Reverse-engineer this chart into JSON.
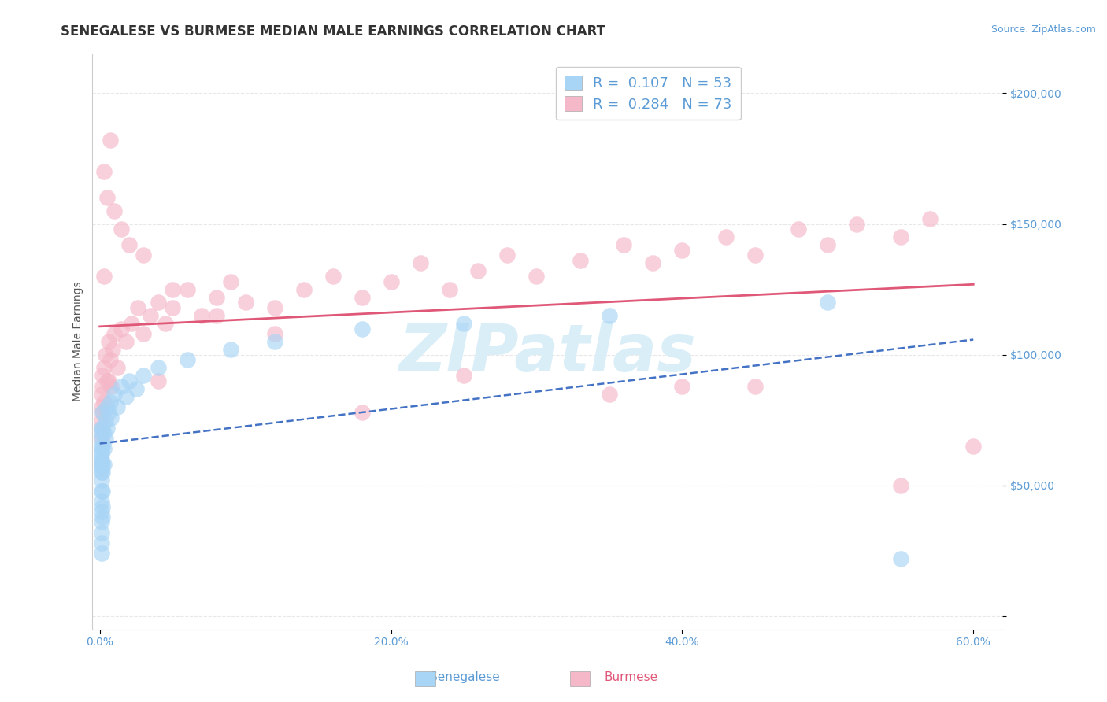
{
  "title": "SENEGALESE VS BURMESE MEDIAN MALE EARNINGS CORRELATION CHART",
  "source": "Source: ZipAtlas.com",
  "ylabel": "Median Male Earnings",
  "xlim": [
    -0.005,
    0.62
  ],
  "ylim": [
    -5000,
    215000
  ],
  "yticks": [
    0,
    50000,
    100000,
    150000,
    200000
  ],
  "ytick_labels": [
    "",
    "$50,000",
    "$100,000",
    "$150,000",
    "$200,000"
  ],
  "xtick_labels": [
    "0.0%",
    "20.0%",
    "40.0%",
    "60.0%"
  ],
  "xticks": [
    0.0,
    0.2,
    0.4,
    0.6
  ],
  "legend_R1": "R = ",
  "legend_V1": "0.107",
  "legend_N1": "  N = ",
  "legend_C1": "53",
  "legend_R2": "R = ",
  "legend_V2": "0.284",
  "legend_N2": "  N = ",
  "legend_C2": "73",
  "watermark": "ZIPatlas",
  "background_color": "#ffffff",
  "grid_color": "#e8e8e8",
  "senegalese_color": "#a8d4f5",
  "burmese_color": "#f5b8c8",
  "senegalese_line_color": "#4472C4",
  "burmese_line_color": "#e05878",
  "title_color": "#333333",
  "axis_color": "#5b9bd5",
  "watermark_color": "#daeef8",
  "title_fontsize": 12,
  "axis_label_fontsize": 10,
  "tick_fontsize": 10,
  "source_fontsize": 9,
  "legend_fontsize": 13,
  "senegalese_x": [
    0.001,
    0.001,
    0.001,
    0.001,
    0.001,
    0.001,
    0.001,
    0.001,
    0.001,
    0.001,
    0.001,
    0.001,
    0.001,
    0.001,
    0.001,
    0.001,
    0.001,
    0.001,
    0.001,
    0.002,
    0.002,
    0.002,
    0.002,
    0.002,
    0.002,
    0.002,
    0.002,
    0.003,
    0.003,
    0.003,
    0.004,
    0.004,
    0.005,
    0.005,
    0.006,
    0.007,
    0.008,
    0.01,
    0.012,
    0.015,
    0.018,
    0.02,
    0.025,
    0.03,
    0.04,
    0.06,
    0.09,
    0.12,
    0.18,
    0.25,
    0.35,
    0.5,
    0.55
  ],
  "senegalese_y": [
    62000,
    58000,
    55000,
    60000,
    65000,
    52000,
    63000,
    70000,
    57000,
    68000,
    72000,
    59000,
    48000,
    44000,
    40000,
    36000,
    32000,
    28000,
    24000,
    58000,
    65000,
    72000,
    78000,
    55000,
    48000,
    42000,
    38000,
    70000,
    64000,
    58000,
    75000,
    68000,
    80000,
    72000,
    78000,
    82000,
    76000,
    85000,
    80000,
    88000,
    84000,
    90000,
    87000,
    92000,
    95000,
    98000,
    102000,
    105000,
    110000,
    112000,
    115000,
    120000,
    22000
  ],
  "burmese_x": [
    0.001,
    0.001,
    0.001,
    0.001,
    0.001,
    0.002,
    0.002,
    0.002,
    0.003,
    0.003,
    0.004,
    0.005,
    0.006,
    0.007,
    0.008,
    0.009,
    0.01,
    0.012,
    0.015,
    0.018,
    0.022,
    0.026,
    0.03,
    0.035,
    0.04,
    0.045,
    0.05,
    0.06,
    0.07,
    0.08,
    0.09,
    0.1,
    0.12,
    0.14,
    0.16,
    0.18,
    0.2,
    0.22,
    0.24,
    0.26,
    0.28,
    0.3,
    0.33,
    0.36,
    0.38,
    0.4,
    0.43,
    0.45,
    0.48,
    0.5,
    0.52,
    0.55,
    0.57,
    0.003,
    0.005,
    0.007,
    0.01,
    0.015,
    0.02,
    0.03,
    0.05,
    0.08,
    0.12,
    0.18,
    0.25,
    0.35,
    0.45,
    0.55,
    0.6,
    0.003,
    0.006,
    0.04,
    0.4
  ],
  "burmese_y": [
    75000,
    80000,
    68000,
    85000,
    72000,
    88000,
    78000,
    92000,
    95000,
    82000,
    100000,
    90000,
    105000,
    98000,
    88000,
    102000,
    108000,
    95000,
    110000,
    105000,
    112000,
    118000,
    108000,
    115000,
    120000,
    112000,
    118000,
    125000,
    115000,
    122000,
    128000,
    120000,
    118000,
    125000,
    130000,
    122000,
    128000,
    135000,
    125000,
    132000,
    138000,
    130000,
    136000,
    142000,
    135000,
    140000,
    145000,
    138000,
    148000,
    142000,
    150000,
    145000,
    152000,
    170000,
    160000,
    182000,
    155000,
    148000,
    142000,
    138000,
    125000,
    115000,
    108000,
    78000,
    92000,
    85000,
    88000,
    50000,
    65000,
    130000,
    90000,
    90000,
    88000
  ]
}
